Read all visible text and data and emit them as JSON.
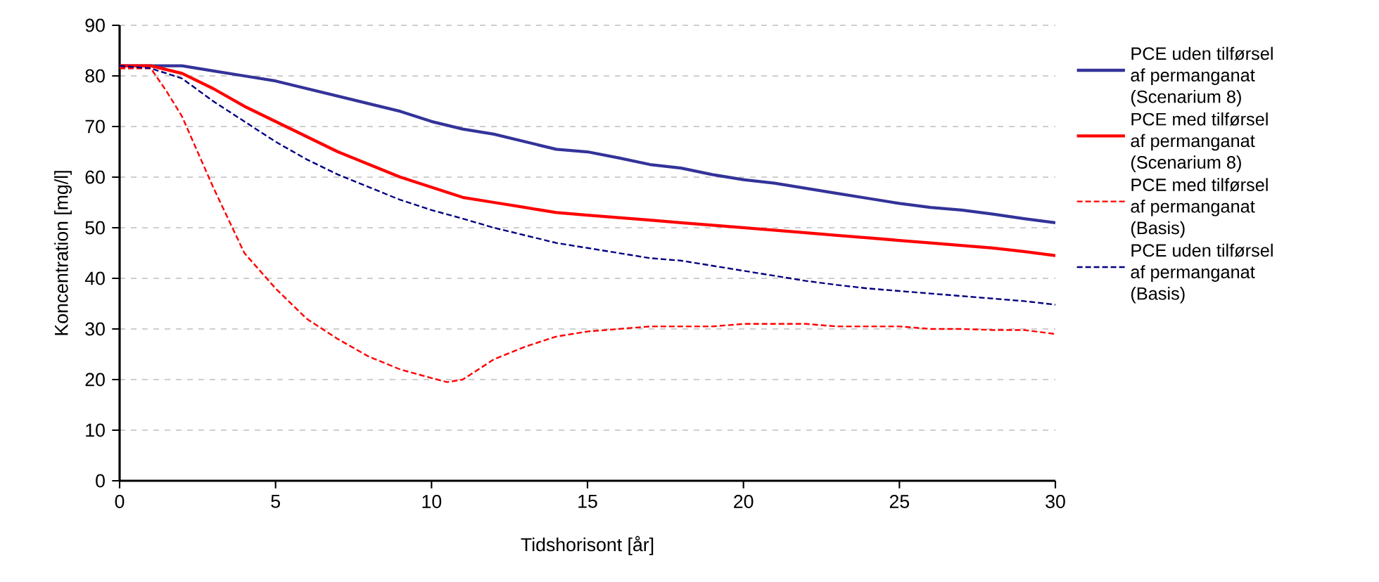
{
  "chart_data": {
    "type": "line",
    "xlabel": "Tidshorisont [år]",
    "ylabel": "Koncentration [mg/l]",
    "xlim": [
      0,
      30
    ],
    "ylim": [
      0,
      90
    ],
    "xticks": [
      0,
      5,
      10,
      15,
      20,
      25,
      30
    ],
    "yticks": [
      0,
      10,
      20,
      30,
      40,
      50,
      60,
      70,
      80,
      90
    ],
    "grid": "y",
    "legend": "right",
    "marker": "none",
    "series": [
      {
        "name": "PCE uden tilførsel af permanganat (Scenarium 8)",
        "color": "#333399",
        "line_style": "solid",
        "x": [
          0,
          1,
          2,
          3,
          4,
          5,
          6,
          7,
          8,
          9,
          10,
          11,
          12,
          13,
          14,
          15,
          16,
          17,
          18,
          19,
          20,
          21,
          22,
          23,
          24,
          25,
          26,
          27,
          28,
          29,
          30
        ],
        "values": [
          82,
          82,
          82,
          81,
          80,
          79,
          77.5,
          76,
          74.5,
          73,
          71,
          69.5,
          68.5,
          67,
          65.5,
          65,
          63.8,
          62.5,
          61.8,
          60.5,
          59.5,
          58.8,
          57.8,
          56.8,
          55.8,
          54.8,
          54,
          53.5,
          52.7,
          51.8,
          51
        ]
      },
      {
        "name": "PCE med tilførsel af permanganat (Scenarium 8)",
        "color": "#ff0000",
        "line_style": "solid",
        "x": [
          0,
          1,
          2,
          3,
          4,
          5,
          6,
          7,
          8,
          9,
          10,
          11,
          12,
          13,
          14,
          15,
          16,
          17,
          18,
          19,
          20,
          21,
          22,
          23,
          24,
          25,
          26,
          27,
          28,
          29,
          30
        ],
        "values": [
          82,
          82,
          80.5,
          77.5,
          74,
          71,
          68,
          65,
          62.5,
          60,
          58,
          56,
          55,
          54,
          53,
          52.5,
          52,
          51.5,
          51,
          50.5,
          50,
          49.5,
          49,
          48.5,
          48,
          47.5,
          47,
          46.5,
          46,
          45.3,
          44.5
        ]
      },
      {
        "name": "PCE med tilførsel af permanganat (Basis)",
        "color": "#ff0000",
        "line_style": "dashed",
        "x": [
          0,
          1,
          1.5,
          2,
          3,
          4,
          5,
          6,
          7,
          8,
          9,
          10,
          10.5,
          11,
          12,
          13,
          14,
          15,
          16,
          17,
          18,
          19,
          20,
          21,
          22,
          23,
          24,
          25,
          26,
          27,
          28,
          29,
          30
        ],
        "values": [
          81.5,
          81.5,
          77,
          72,
          58,
          45,
          38,
          32,
          28,
          24.5,
          22,
          20.3,
          19.5,
          20,
          24,
          26.5,
          28.5,
          29.5,
          30,
          30.5,
          30.5,
          30.5,
          31,
          31,
          31,
          30.5,
          30.5,
          30.5,
          30,
          30,
          29.8,
          29.8,
          29
        ]
      },
      {
        "name": "PCE uden tilførsel af permanganat (Basis)",
        "color": "#000080",
        "line_style": "dashed",
        "x": [
          0,
          1,
          2,
          3,
          4,
          5,
          6,
          7,
          8,
          9,
          10,
          11,
          12,
          13,
          14,
          15,
          16,
          17,
          18,
          19,
          20,
          21,
          22,
          23,
          24,
          25,
          26,
          27,
          28,
          29,
          30
        ],
        "values": [
          82,
          81.5,
          79.5,
          75,
          71,
          67,
          63.5,
          60.5,
          58,
          55.5,
          53.5,
          51.8,
          50,
          48.5,
          47,
          46,
          45,
          44,
          43.5,
          42.5,
          41.5,
          40.5,
          39.5,
          38.7,
          38,
          37.5,
          37,
          36.5,
          36,
          35.5,
          34.8
        ]
      }
    ]
  }
}
